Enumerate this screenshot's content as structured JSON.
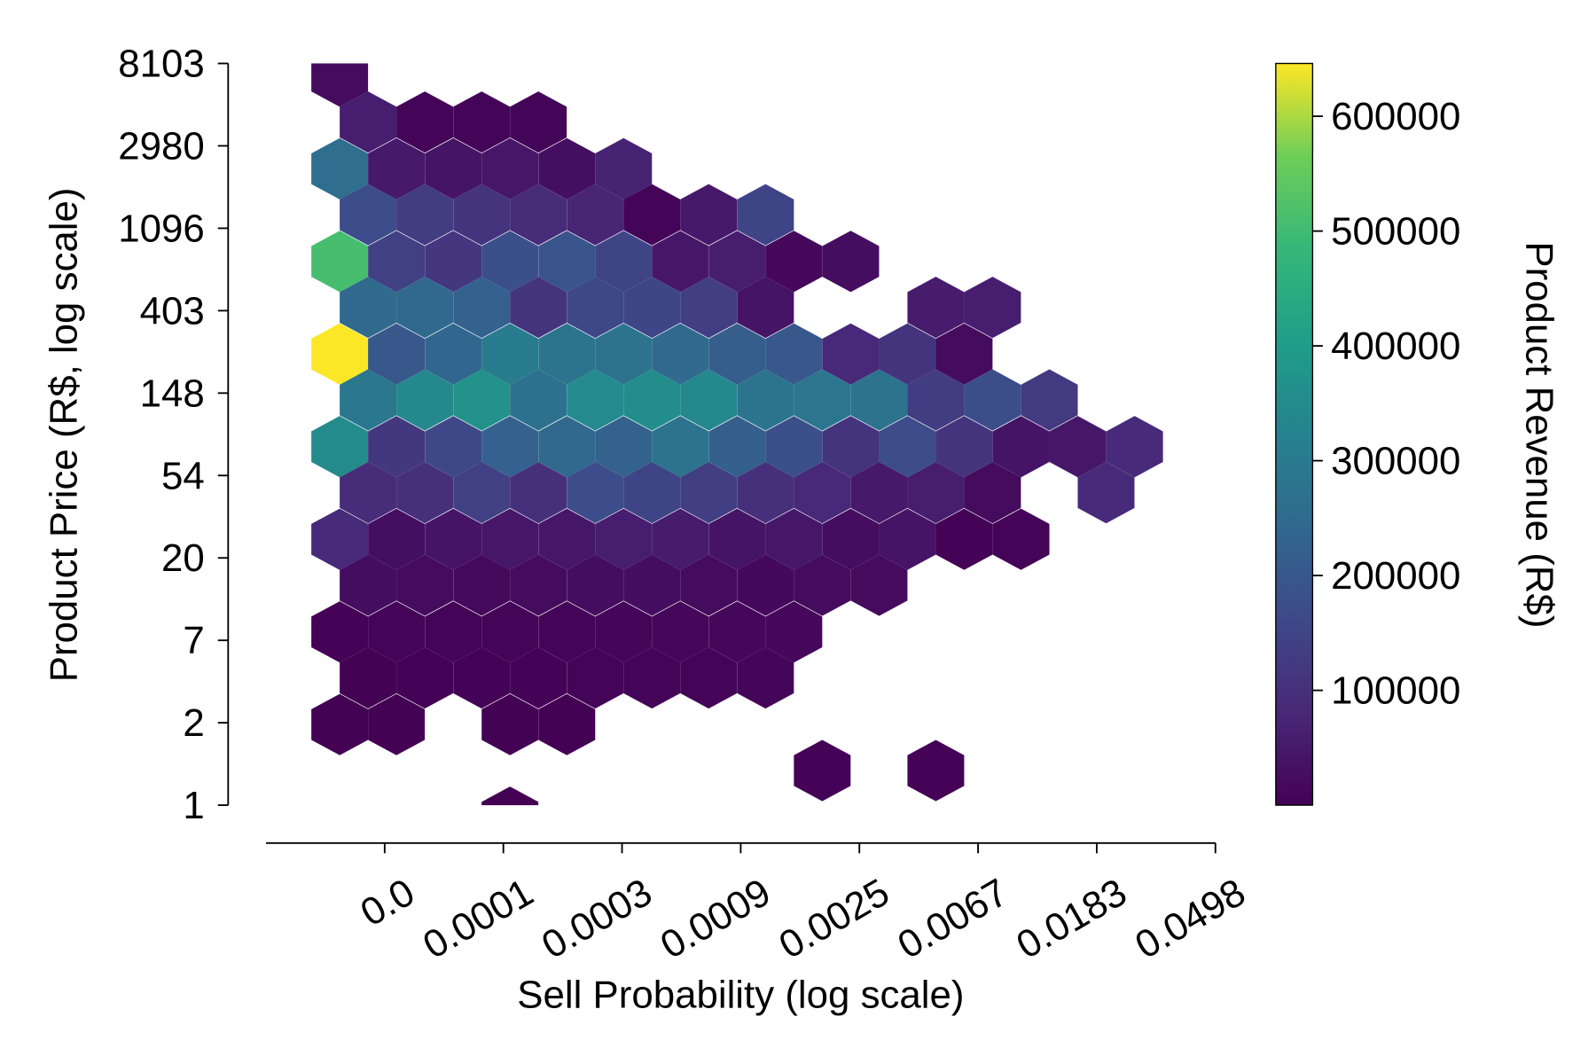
{
  "chart_data": {
    "type": "hexbin",
    "xlabel": "Sell Probability (log scale)",
    "ylabel": "Product Price (R$, log scale)",
    "colorbar_label": "Product Revenue (R$)",
    "colormap": "viridis",
    "xlim": [
      -11,
      -3
    ],
    "ylim": [
      0,
      9
    ],
    "clim": [
      0,
      646000
    ],
    "xticks": [
      {
        "value": -10,
        "label": "0.0"
      },
      {
        "value": -9,
        "label": "0.0001"
      },
      {
        "value": -8,
        "label": "0.0003"
      },
      {
        "value": -7,
        "label": "0.0009"
      },
      {
        "value": -6,
        "label": "0.0025"
      },
      {
        "value": -5,
        "label": "0.0067"
      },
      {
        "value": -4,
        "label": "0.0183"
      },
      {
        "value": -3,
        "label": "0.0498"
      }
    ],
    "yticks": [
      {
        "value": 0,
        "label": "1"
      },
      {
        "value": 1,
        "label": "2"
      },
      {
        "value": 2,
        "label": "7"
      },
      {
        "value": 3,
        "label": "20"
      },
      {
        "value": 4,
        "label": "54"
      },
      {
        "value": 5,
        "label": "148"
      },
      {
        "value": 6,
        "label": "403"
      },
      {
        "value": 7,
        "label": "1096"
      },
      {
        "value": 8,
        "label": "2980"
      },
      {
        "value": 9,
        "label": "8103"
      }
    ],
    "cticks": [
      100000,
      200000,
      300000,
      400000,
      500000,
      600000
    ],
    "x": [
      -10.379,
      -10.14,
      -9.662,
      -9.183,
      -8.705,
      -10.379,
      -9.901,
      -9.422,
      -8.944,
      -8.465,
      -7.987,
      -10.14,
      -9.662,
      -9.183,
      -8.705,
      -8.226,
      -7.748,
      -7.27,
      -6.791,
      -10.379,
      -9.901,
      -9.422,
      -8.944,
      -8.465,
      -7.987,
      -7.509,
      -7.03,
      -6.552,
      -6.073,
      -10.14,
      -9.662,
      -9.183,
      -8.705,
      -8.226,
      -7.748,
      -7.27,
      -6.791,
      -5.356,
      -4.878,
      -10.379,
      -9.901,
      -9.422,
      -8.944,
      -8.465,
      -7.987,
      -7.509,
      -7.03,
      -6.552,
      -6.073,
      -5.595,
      -5.117,
      -10.14,
      -9.662,
      -9.183,
      -8.705,
      -8.226,
      -7.748,
      -7.27,
      -6.791,
      -6.313,
      -5.834,
      -5.356,
      -4.878,
      -4.399,
      -10.379,
      -9.901,
      -9.422,
      -8.944,
      -8.465,
      -7.987,
      -7.509,
      -7.03,
      -6.552,
      -6.073,
      -5.595,
      -5.117,
      -4.638,
      -4.16,
      -3.681,
      -10.14,
      -9.662,
      -9.183,
      -8.705,
      -8.226,
      -7.748,
      -7.27,
      -6.791,
      -6.313,
      -5.834,
      -5.356,
      -4.878,
      -3.921,
      -10.379,
      -9.901,
      -9.422,
      -8.944,
      -8.465,
      -7.987,
      -7.509,
      -7.03,
      -6.552,
      -6.073,
      -5.595,
      -5.117,
      -4.638,
      -10.14,
      -9.662,
      -9.183,
      -8.705,
      -8.226,
      -7.748,
      -7.27,
      -6.791,
      -6.313,
      -5.834,
      -10.379,
      -9.901,
      -9.422,
      -8.944,
      -8.465,
      -7.987,
      -7.509,
      -7.03,
      -6.552,
      -10.14,
      -9.662,
      -9.183,
      -8.705,
      -8.226,
      -7.748,
      -7.27,
      -6.791,
      -10.379,
      -9.901,
      -8.944,
      -8.465,
      -6.313,
      -5.356,
      -8.944
    ],
    "y": [
      8.846,
      8.288,
      8.288,
      8.288,
      8.288,
      7.722,
      7.722,
      7.722,
      7.722,
      7.722,
      7.722,
      7.164,
      7.164,
      7.164,
      7.164,
      7.164,
      7.164,
      7.164,
      7.164,
      6.598,
      6.598,
      6.598,
      6.598,
      6.598,
      6.598,
      6.598,
      6.598,
      6.598,
      6.598,
      6.04,
      6.04,
      6.04,
      6.04,
      6.04,
      6.04,
      6.04,
      6.04,
      6.04,
      6.04,
      5.474,
      5.474,
      5.474,
      5.474,
      5.474,
      5.474,
      5.474,
      5.474,
      5.474,
      5.474,
      5.474,
      5.474,
      4.916,
      4.916,
      4.916,
      4.916,
      4.916,
      4.916,
      4.916,
      4.916,
      4.916,
      4.916,
      4.916,
      4.916,
      4.916,
      4.35,
      4.35,
      4.35,
      4.35,
      4.35,
      4.35,
      4.35,
      4.35,
      4.35,
      4.35,
      4.35,
      4.35,
      4.35,
      4.35,
      4.35,
      3.792,
      3.792,
      3.792,
      3.792,
      3.792,
      3.792,
      3.792,
      3.792,
      3.792,
      3.792,
      3.792,
      3.792,
      3.792,
      3.226,
      3.226,
      3.226,
      3.226,
      3.226,
      3.226,
      3.226,
      3.226,
      3.226,
      3.226,
      3.226,
      3.226,
      3.226,
      2.668,
      2.668,
      2.668,
      2.668,
      2.668,
      2.668,
      2.668,
      2.668,
      2.668,
      2.668,
      2.102,
      2.102,
      2.102,
      2.102,
      2.102,
      2.102,
      2.102,
      2.102,
      2.102,
      1.544,
      1.544,
      1.544,
      1.544,
      1.544,
      1.544,
      1.544,
      1.544,
      0.978,
      0.978,
      0.978,
      0.978,
      0.42,
      0.42,
      -0.146
    ],
    "values": [
      20000,
      60000,
      8000,
      9000,
      10000,
      260000,
      50000,
      40000,
      45000,
      30000,
      70000,
      170000,
      130000,
      110000,
      90000,
      75000,
      8000,
      50000,
      150000,
      510000,
      140000,
      115000,
      180000,
      190000,
      150000,
      45000,
      60000,
      15000,
      25000,
      250000,
      245000,
      225000,
      110000,
      160000,
      155000,
      135000,
      40000,
      55000,
      60000,
      645000,
      200000,
      240000,
      300000,
      280000,
      275000,
      250000,
      215000,
      200000,
      80000,
      110000,
      20000,
      290000,
      340000,
      370000,
      270000,
      345000,
      355000,
      340000,
      280000,
      285000,
      275000,
      130000,
      175000,
      125000,
      350000,
      120000,
      160000,
      225000,
      245000,
      230000,
      275000,
      220000,
      180000,
      110000,
      170000,
      110000,
      40000,
      45000,
      85000,
      90000,
      100000,
      140000,
      100000,
      170000,
      150000,
      135000,
      100000,
      80000,
      50000,
      60000,
      20000,
      85000,
      85000,
      30000,
      40000,
      45000,
      45000,
      60000,
      55000,
      40000,
      45000,
      25000,
      40000,
      5000,
      6000,
      25000,
      22000,
      18000,
      20000,
      25000,
      24000,
      20000,
      16000,
      20000,
      22000,
      5000,
      6000,
      6000,
      7000,
      8000,
      10000,
      12000,
      13000,
      15000,
      3000,
      3500,
      4000,
      5000,
      6000,
      8000,
      9000,
      10000,
      1500,
      2000,
      2500,
      3000,
      4000,
      5000,
      500
    ]
  }
}
